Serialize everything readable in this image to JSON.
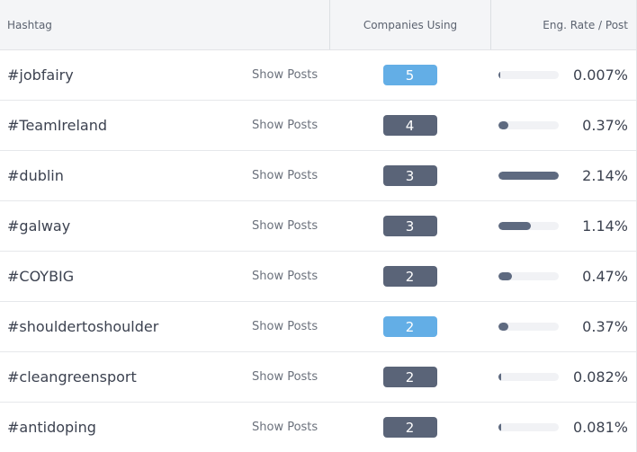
{
  "header": {
    "hashtag": "Hashtag",
    "companies": "Companies Using",
    "eng": "Eng. Rate / Post"
  },
  "colors": {
    "badge_highlight": "#63aee6",
    "badge_default": "#5a6478",
    "bar_fill": "#5e6a80"
  },
  "rows": [
    {
      "tag": "#jobfairy",
      "show": "Show Posts",
      "companies": "5",
      "highlight": true,
      "rate": "0.007%",
      "fill_pct": 0.3
    },
    {
      "tag": "#TeamIreland",
      "show": "Show Posts",
      "companies": "4",
      "highlight": false,
      "rate": "0.37%",
      "fill_pct": 17
    },
    {
      "tag": "#dublin",
      "show": "Show Posts",
      "companies": "3",
      "highlight": false,
      "rate": "2.14%",
      "fill_pct": 100
    },
    {
      "tag": "#galway",
      "show": "Show Posts",
      "companies": "3",
      "highlight": false,
      "rate": "1.14%",
      "fill_pct": 53
    },
    {
      "tag": "#COYBIG",
      "show": "Show Posts",
      "companies": "2",
      "highlight": false,
      "rate": "0.47%",
      "fill_pct": 22
    },
    {
      "tag": "#shouldertoshoulder",
      "show": "Show Posts",
      "companies": "2",
      "highlight": true,
      "rate": "0.37%",
      "fill_pct": 17
    },
    {
      "tag": "#cleangreensport",
      "show": "Show Posts",
      "companies": "2",
      "highlight": false,
      "rate": "0.082%",
      "fill_pct": 3.8
    },
    {
      "tag": "#antidoping",
      "show": "Show Posts",
      "companies": "2",
      "highlight": false,
      "rate": "0.081%",
      "fill_pct": 3.8
    }
  ]
}
